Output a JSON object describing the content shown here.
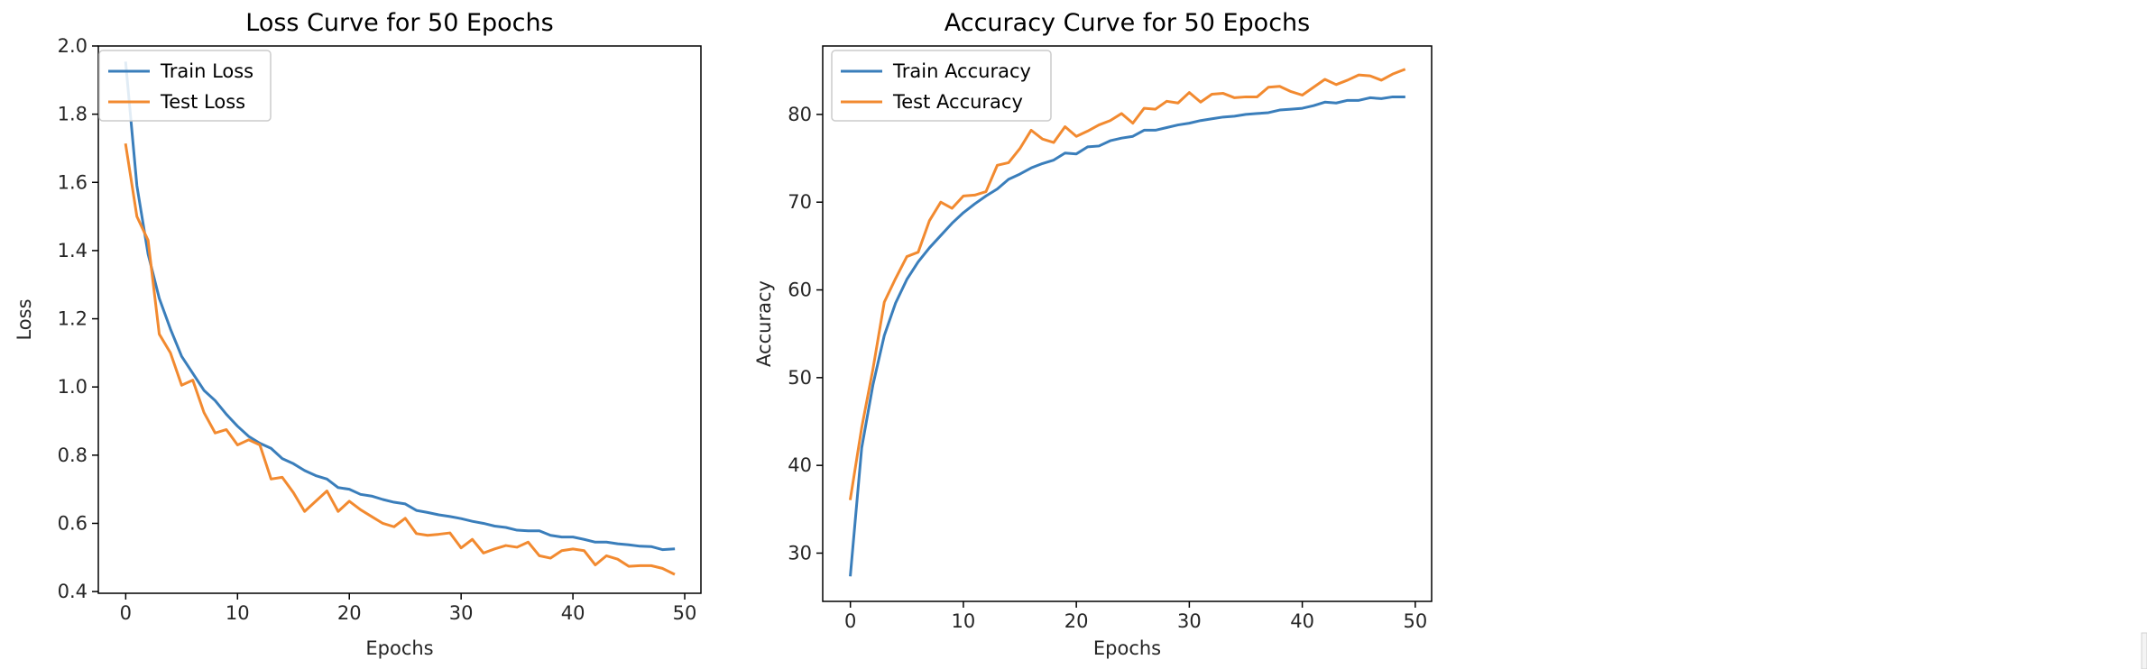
{
  "colors": {
    "train": "#3a7ebb",
    "test": "#f28a30"
  },
  "chart_data": [
    {
      "type": "line",
      "title": "Loss Curve for 50 Epochs",
      "xlabel": "Epochs",
      "ylabel": "Loss",
      "xlim": [
        -2.45,
        51.45
      ],
      "ylim": [
        0.395,
        2.0
      ],
      "xticks": [
        0,
        10,
        20,
        30,
        40,
        50
      ],
      "yticks": [
        0.4,
        0.6,
        0.8,
        1.0,
        1.2,
        1.4,
        1.6,
        1.8,
        2.0
      ],
      "ytick_labels": [
        "0.4",
        "0.6",
        "0.8",
        "1.0",
        "1.2",
        "1.4",
        "1.6",
        "1.8",
        "2.0"
      ],
      "legend_position": "upper-left",
      "x": [
        0,
        1,
        2,
        3,
        4,
        5,
        6,
        7,
        8,
        9,
        10,
        11,
        12,
        13,
        14,
        15,
        16,
        17,
        18,
        19,
        20,
        21,
        22,
        23,
        24,
        25,
        26,
        27,
        28,
        29,
        30,
        31,
        32,
        33,
        34,
        35,
        36,
        37,
        38,
        39,
        40,
        41,
        42,
        43,
        44,
        45,
        46,
        47,
        48,
        49
      ],
      "series": [
        {
          "name": "Train Loss",
          "color_key": "train",
          "values": [
            1.95,
            1.59,
            1.39,
            1.26,
            1.17,
            1.09,
            1.04,
            0.99,
            0.96,
            0.92,
            0.885,
            0.855,
            0.835,
            0.82,
            0.79,
            0.775,
            0.755,
            0.74,
            0.73,
            0.705,
            0.7,
            0.685,
            0.68,
            0.67,
            0.662,
            0.657,
            0.638,
            0.632,
            0.625,
            0.62,
            0.614,
            0.606,
            0.6,
            0.592,
            0.588,
            0.58,
            0.578,
            0.578,
            0.565,
            0.56,
            0.56,
            0.553,
            0.545,
            0.545,
            0.54,
            0.537,
            0.533,
            0.532,
            0.523,
            0.525
          ]
        },
        {
          "name": "Test Loss",
          "color_key": "test",
          "values": [
            1.71,
            1.5,
            1.43,
            1.155,
            1.1,
            1.005,
            1.02,
            0.925,
            0.865,
            0.875,
            0.83,
            0.845,
            0.83,
            0.73,
            0.735,
            0.69,
            0.635,
            0.665,
            0.695,
            0.635,
            0.665,
            0.64,
            0.62,
            0.6,
            0.59,
            0.615,
            0.57,
            0.565,
            0.568,
            0.572,
            0.528,
            0.553,
            0.513,
            0.525,
            0.535,
            0.53,
            0.545,
            0.505,
            0.498,
            0.52,
            0.525,
            0.52,
            0.478,
            0.505,
            0.495,
            0.474,
            0.476,
            0.476,
            0.468,
            0.452
          ]
        }
      ]
    },
    {
      "type": "line",
      "title": "Accuracy Curve for 50 Epochs",
      "xlabel": "Epochs",
      "ylabel": "Accuracy",
      "xlim": [
        -2.45,
        51.45
      ],
      "ylim": [
        24.5,
        87.8
      ],
      "xticks": [
        0,
        10,
        20,
        30,
        40,
        50
      ],
      "yticks": [
        30,
        40,
        50,
        60,
        70,
        80
      ],
      "ytick_labels": [
        "30",
        "40",
        "50",
        "60",
        "70",
        "80"
      ],
      "legend_position": "upper-left",
      "x": [
        0,
        1,
        2,
        3,
        4,
        5,
        6,
        7,
        8,
        9,
        10,
        11,
        12,
        13,
        14,
        15,
        16,
        17,
        18,
        19,
        20,
        21,
        22,
        23,
        24,
        25,
        26,
        27,
        28,
        29,
        30,
        31,
        32,
        33,
        34,
        35,
        36,
        37,
        38,
        39,
        40,
        41,
        42,
        43,
        44,
        45,
        46,
        47,
        48,
        49
      ],
      "series": [
        {
          "name": "Train Accuracy",
          "color_key": "train",
          "values": [
            27.5,
            42.0,
            49.2,
            54.8,
            58.5,
            61.2,
            63.2,
            64.8,
            66.2,
            67.6,
            68.8,
            69.8,
            70.7,
            71.5,
            72.6,
            73.2,
            73.9,
            74.4,
            74.8,
            75.6,
            75.5,
            76.3,
            76.4,
            77.0,
            77.3,
            77.5,
            78.2,
            78.2,
            78.5,
            78.8,
            79.0,
            79.3,
            79.5,
            79.7,
            79.8,
            80.0,
            80.1,
            80.2,
            80.5,
            80.6,
            80.7,
            81.0,
            81.4,
            81.3,
            81.6,
            81.6,
            81.9,
            81.8,
            82.0,
            82.0
          ]
        },
        {
          "name": "Test Accuracy",
          "color_key": "test",
          "values": [
            36.2,
            44.3,
            51.0,
            58.6,
            61.3,
            63.8,
            64.3,
            67.9,
            70.0,
            69.3,
            70.7,
            70.8,
            71.2,
            74.2,
            74.5,
            76.1,
            78.2,
            77.2,
            76.8,
            78.6,
            77.5,
            78.1,
            78.8,
            79.3,
            80.1,
            79.0,
            80.7,
            80.6,
            81.5,
            81.3,
            82.5,
            81.4,
            82.3,
            82.4,
            81.9,
            82.0,
            82.0,
            83.1,
            83.2,
            82.6,
            82.2,
            83.1,
            84.0,
            83.4,
            83.9,
            84.5,
            84.4,
            83.9,
            84.6,
            85.1
          ]
        }
      ]
    }
  ]
}
